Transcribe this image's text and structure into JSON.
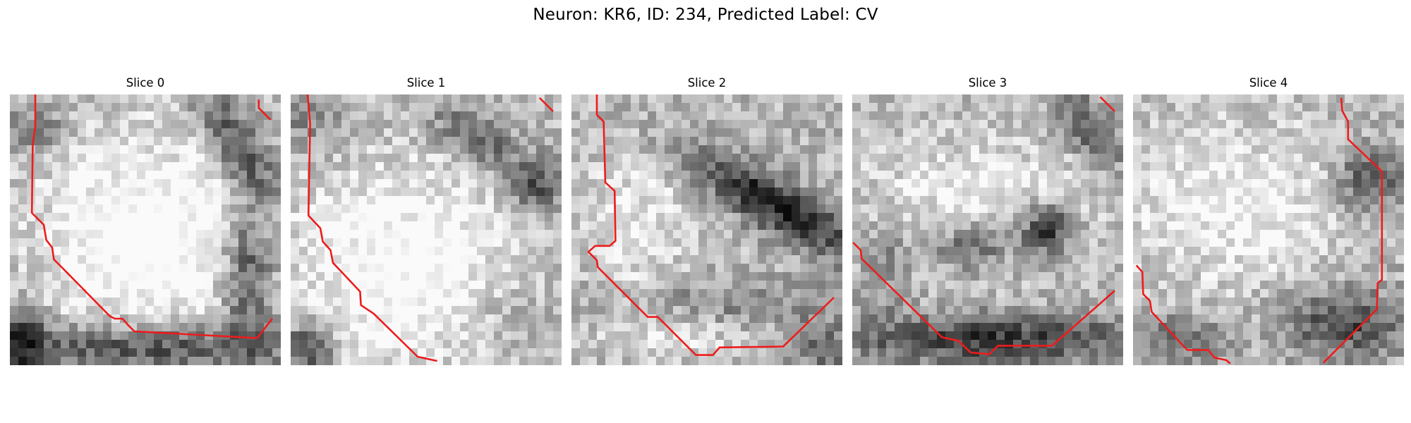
{
  "title": "Neuron: KR6, ID: 234, Predicted Label: CV",
  "panels": [
    {
      "label": "Slice 0"
    },
    {
      "label": "Slice 1"
    },
    {
      "label": "Slice 2"
    },
    {
      "label": "Slice 3"
    },
    {
      "label": "Slice 4"
    }
  ],
  "colors": {
    "contour": "#ee1c1c",
    "background": "#ffffff"
  }
}
